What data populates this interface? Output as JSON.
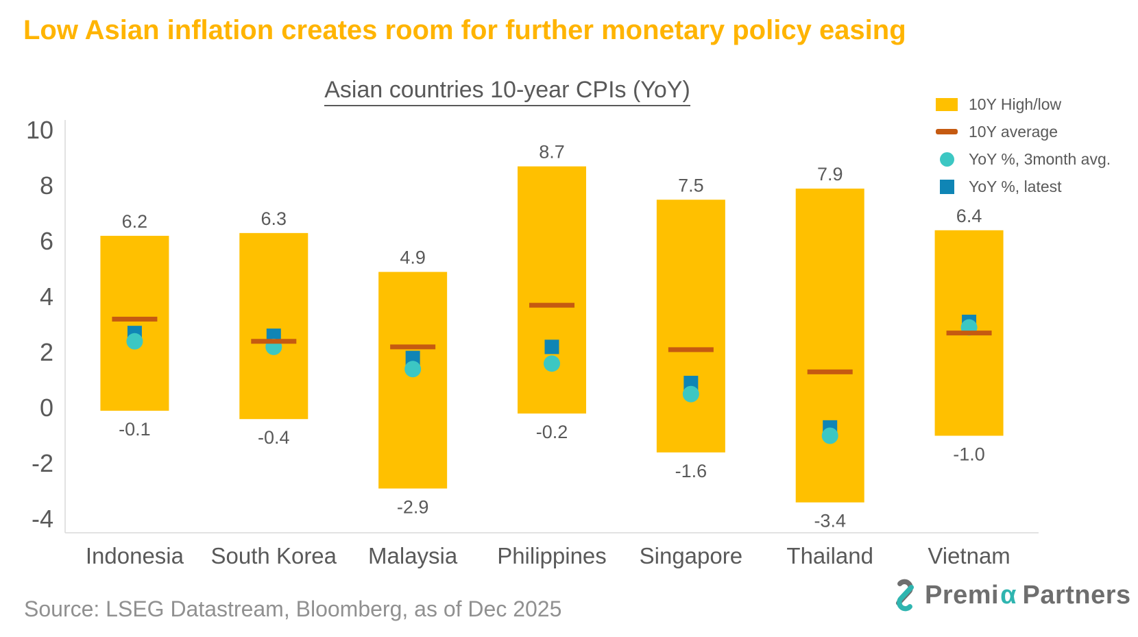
{
  "title": "Low Asian inflation creates room for further monetary policy easing",
  "chart_data": {
    "type": "bar",
    "subtype": "floating-range-bars-with-markers",
    "title": "Asian countries 10-year CPIs (YoY)",
    "categories": [
      "Indonesia",
      "South Korea",
      "Malaysia",
      "Philippines",
      "Singapore",
      "Thailand",
      "Vietnam"
    ],
    "series": [
      {
        "name": "10Y High/low",
        "marker": "range-bar",
        "high": [
          6.2,
          6.3,
          4.9,
          8.7,
          7.5,
          7.9,
          6.4
        ],
        "low": [
          -0.1,
          -0.4,
          -2.9,
          -0.2,
          -1.6,
          -3.4,
          -1.0
        ]
      },
      {
        "name": "10Y average",
        "marker": "dash",
        "values": [
          3.2,
          2.4,
          2.2,
          3.7,
          2.1,
          1.3,
          2.7
        ]
      },
      {
        "name": "YoY %, 3month avg.",
        "marker": "circle",
        "values": [
          2.4,
          2.2,
          1.4,
          1.6,
          0.5,
          -1.0,
          2.9
        ]
      },
      {
        "name": "YoY %, latest",
        "marker": "square",
        "values": [
          2.7,
          2.6,
          1.8,
          2.2,
          0.9,
          -0.7,
          3.1
        ]
      }
    ],
    "ylim": [
      -4,
      10
    ],
    "yticks": [
      10,
      8,
      6,
      4,
      2,
      0,
      -2,
      -4
    ],
    "grid": false,
    "legend_position": "top-right",
    "colors": {
      "range": "#FFC000",
      "average": "#C55A11",
      "circle": "#3CC7C3",
      "square": "#0F85B5",
      "axis": "#D9D9D9",
      "text": "#595959",
      "title": "#FFB400"
    }
  },
  "legend": {
    "items": [
      {
        "label": "10Y High/low",
        "swatch": "rect",
        "color": "#FFC000"
      },
      {
        "label": "10Y average",
        "swatch": "dash",
        "color": "#C55A11"
      },
      {
        "label": "YoY %, 3month avg.",
        "swatch": "circle",
        "color": "#3CC7C3"
      },
      {
        "label": "YoY %, latest",
        "swatch": "square",
        "color": "#0F85B5"
      }
    ]
  },
  "footer": {
    "source": "Source: LSEG Datastream, Bloomberg, as of Dec 2025",
    "logo": {
      "pre": "Premi",
      "alpha": "α",
      "post": "Partners"
    }
  }
}
